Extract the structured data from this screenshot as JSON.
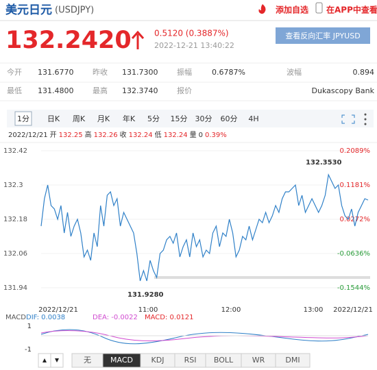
{
  "header": {
    "title": "美元日元",
    "code": "(USDJPY)",
    "add": "添加自选",
    "app": "在APP中查看"
  },
  "quote": {
    "price": "132.2420",
    "change": "0.5120 (0.3887%)",
    "time": "2022-12-21 13:40:22",
    "button": "查看反向汇率 JPYUSD"
  },
  "stats": {
    "rows": [
      [
        {
          "label": "今开",
          "value": "131.6770"
        },
        {
          "label": "昨收",
          "value": "131.7300"
        },
        {
          "label": "振幅",
          "value": "0.6787%"
        },
        {
          "label": "波幅",
          "value": "0.894"
        }
      ],
      [
        {
          "label": "最低",
          "value": "131.4800"
        },
        {
          "label": "最高",
          "value": "132.3740"
        },
        {
          "label": "报价",
          "value": "Dukascopy Bank"
        }
      ]
    ]
  },
  "tabs": [
    "1分",
    "日K",
    "周K",
    "月K",
    "年K",
    "5分",
    "15分",
    "30分",
    "60分",
    "4H"
  ],
  "info": [
    "2022/12/21",
    "开",
    "132.25",
    "高",
    "132.26",
    "收",
    "132.24",
    "低",
    "132.24",
    "量",
    "0",
    "0.39%"
  ],
  "chart": {
    "type": "line",
    "color": "#2f80c8",
    "values": [
      132.156,
      132.252,
      132.3,
      132.228,
      132.216,
      132.18,
      132.228,
      132.132,
      132.204,
      132.12,
      132.156,
      132.18,
      132.132,
      132.048,
      132.072,
      132.036,
      132.132,
      132.084,
      132.228,
      132.156,
      132.264,
      132.276,
      132.228,
      132.252,
      132.156,
      132.204,
      132.18,
      132.156,
      132.132,
      132.06,
      131.964,
      132.0,
      131.964,
      132.036,
      132.0,
      131.976,
      132.06,
      132.072,
      132.108,
      132.12,
      132.096,
      132.132,
      132.048,
      132.084,
      132.108,
      132.048,
      132.132,
      132.084,
      132.108,
      132.048,
      132.072,
      132.06,
      132.132,
      132.156,
      132.084,
      132.132,
      132.12,
      132.18,
      132.132,
      132.048,
      132.072,
      132.12,
      132.108,
      132.156,
      132.108,
      132.144,
      132.18,
      132.168,
      132.204,
      132.168,
      132.192,
      132.228,
      132.204,
      132.252,
      132.276,
      132.276,
      132.288,
      132.3,
      132.228,
      132.264,
      132.204,
      132.228,
      132.252,
      132.228,
      132.204,
      132.228,
      132.264,
      132.336,
      132.312,
      132.288,
      132.3,
      132.228,
      132.192,
      132.18,
      132.216,
      132.156,
      132.204,
      132.228,
      132.252,
      132.2472
    ],
    "ylim": [
      131.9,
      132.44
    ],
    "yticks": [
      132.42,
      132.3,
      132.18,
      132.06,
      131.94
    ],
    "y2labels": [
      "0.2089%",
      "0.1181%",
      "0.0272%",
      "-0.0636%",
      "-0.1544%"
    ],
    "xlabels": [
      "2022/12/21",
      "11:00",
      "12:00",
      "13:00",
      "2022/12/21"
    ],
    "annotations": [
      "132.3530",
      "131.9280"
    ]
  },
  "macd": {
    "labels": [
      "MACD",
      "DIF: 0.0038",
      "DEA: -0.0022",
      "MACD: 0.0121"
    ],
    "yticks": [
      1,
      -1
    ]
  },
  "indicators": [
    "无",
    "MACD",
    "KDJ",
    "RSI",
    "BOLL",
    "WR",
    "DMI"
  ]
}
